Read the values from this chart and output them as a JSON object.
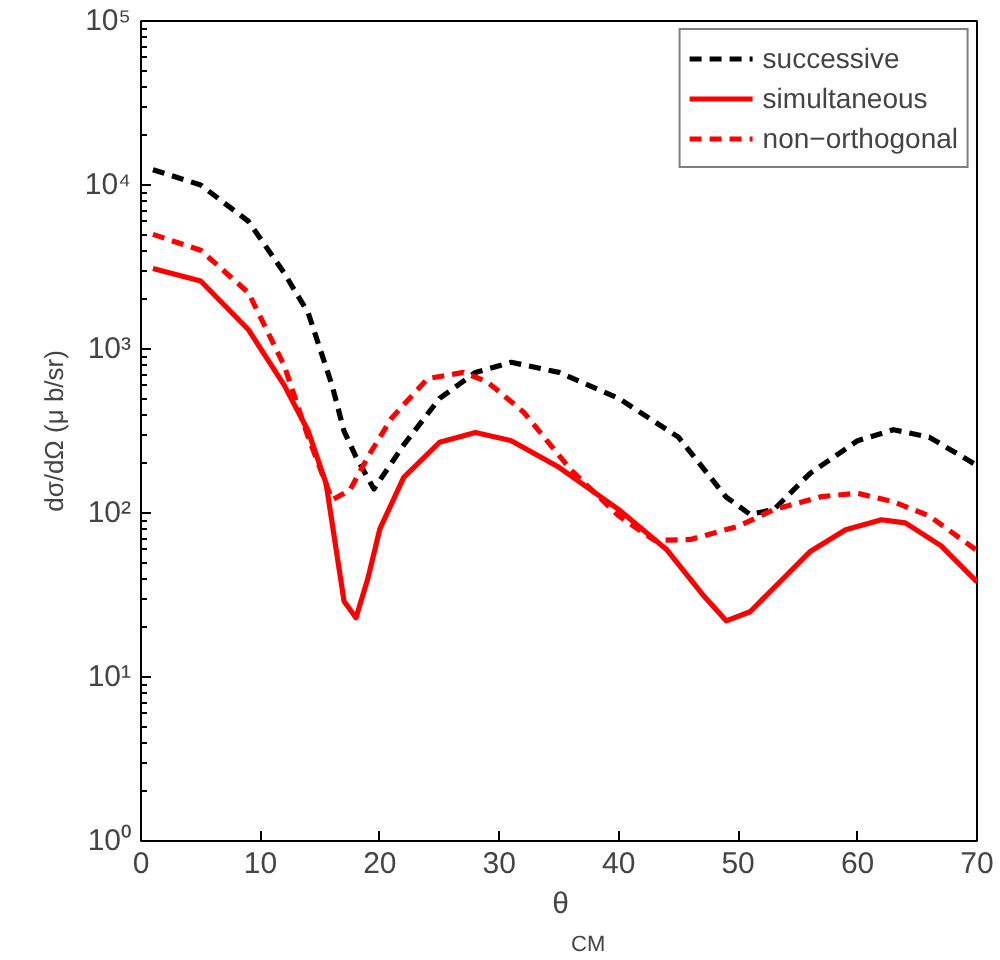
{
  "chart_data": {
    "type": "line",
    "xlabel": "θ$_{CM}$",
    "ylabel": "dσ/dΩ (μ b/sr)",
    "log": "y",
    "grid": false,
    "legend": "top right",
    "xlim": [
      0,
      70
    ],
    "xticks": [
      0,
      10,
      20,
      30,
      40,
      50,
      60,
      70
    ],
    "ylim": [
      1,
      100000
    ],
    "yticks": [
      {
        "value": 1,
        "label": "10⁰"
      },
      {
        "value": 10,
        "label": "10¹"
      },
      {
        "value": 100,
        "label": "10²"
      },
      {
        "value": 1000,
        "label": "10³"
      },
      {
        "value": 10000,
        "label": "10⁴"
      },
      {
        "value": 100000,
        "label": "10⁵"
      }
    ],
    "series": [
      {
        "name": "successive",
        "color": "#000000",
        "line_style": "dashed",
        "x": [
          1,
          5,
          9,
          12,
          14,
          16,
          17,
          18,
          19.5,
          22,
          25,
          28,
          31,
          35,
          40,
          45,
          49,
          51,
          53,
          56,
          60,
          63,
          66,
          70
        ],
        "values": [
          12400,
          10000,
          6000,
          2900,
          1660,
          600,
          316,
          220,
          140,
          260,
          500,
          720,
          830,
          720,
          500,
          290,
          125,
          98,
          105,
          174,
          276,
          322,
          290,
          195
        ]
      },
      {
        "name": "simultaneous",
        "color": "#ff0000",
        "line_style": "solid",
        "x": [
          1,
          5,
          9,
          12,
          14,
          15.5,
          17,
          18,
          19,
          20,
          22,
          25,
          28,
          31,
          35,
          40,
          44,
          47,
          49,
          51,
          53,
          56,
          59,
          62,
          64,
          67,
          70
        ],
        "values": [
          3100,
          2600,
          1310,
          600,
          316,
          151,
          29,
          23,
          40,
          80,
          165,
          270,
          310,
          276,
          190,
          105,
          60,
          32,
          22,
          25,
          35,
          58,
          79,
          91,
          87,
          63,
          38
        ]
      },
      {
        "name": "non−orthogonal",
        "color": "#ff0000",
        "line_style": "dashed",
        "x": [
          1,
          5,
          9,
          12,
          14,
          16,
          17.5,
          19,
          21,
          24,
          27,
          29,
          32,
          36,
          40,
          43,
          46,
          50,
          53,
          57,
          60,
          63,
          66,
          70
        ],
        "values": [
          5000,
          4000,
          2200,
          790,
          290,
          120,
          138,
          220,
          380,
          660,
          720,
          630,
          415,
          183,
          96,
          68,
          69,
          83,
          105,
          126,
          132,
          117,
          96,
          59
        ]
      }
    ]
  }
}
